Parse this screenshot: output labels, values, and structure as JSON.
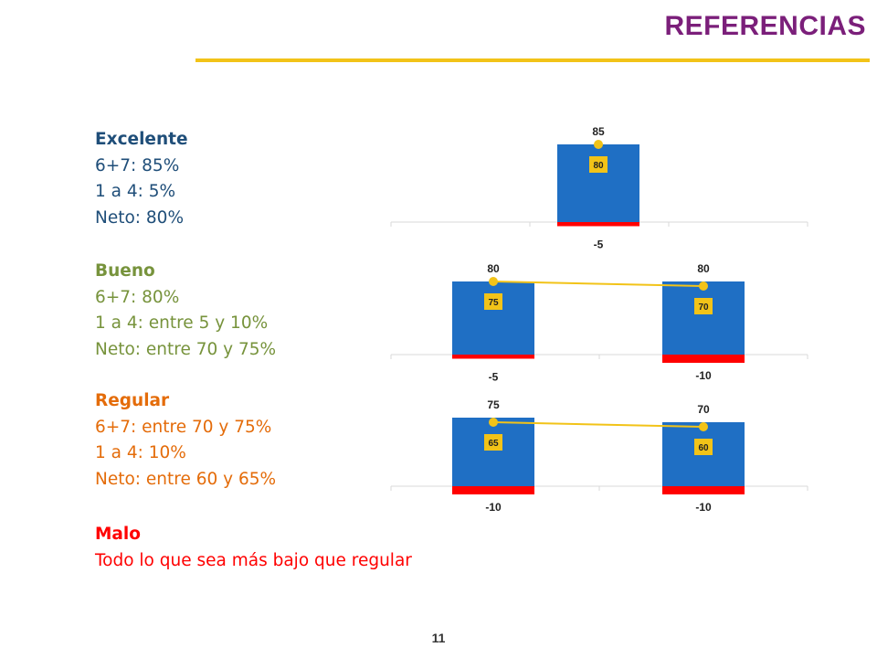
{
  "header": {
    "title": "REFERENCIAS",
    "rule_color": "#f2c318",
    "title_color": "#7b1f7a"
  },
  "legend": [
    {
      "key": "excelente",
      "color": "#1f4e79",
      "heading": "Excelente",
      "lines": [
        "6+7: 85%",
        "1 a 4: 5%",
        "Neto: 80%"
      ]
    },
    {
      "key": "bueno",
      "color": "#77933c",
      "heading": "Bueno",
      "lines": [
        "6+7: 80%",
        "1 a 4: entre 5 y 10%",
        "Neto: entre 70 y 75%"
      ]
    },
    {
      "key": "regular",
      "color": "#e46c0a",
      "heading": "Regular",
      "lines": [
        "6+7: entre 70 y 75%",
        "1 a 4: 10%",
        "Neto: entre 60 y 65%"
      ]
    },
    {
      "key": "malo",
      "color": "#ff0000",
      "heading": "Malo",
      "lines": [
        "Todo lo que sea más bajo que regular"
      ]
    }
  ],
  "colors": {
    "positive": "#1f6fc4",
    "negative": "#ff0000",
    "net_line": "#f2c318",
    "axis": "#d9d9d9"
  },
  "chart_data": [
    {
      "type": "bar",
      "name": "excelente",
      "categories": [
        "",
        "",
        ""
      ],
      "series": [
        {
          "values": [
            null,
            85,
            null
          ]
        },
        {
          "values": [
            null,
            -5,
            null
          ]
        },
        {
          "values": [
            null,
            80,
            null
          ]
        }
      ],
      "ylim": [
        -10,
        90
      ],
      "grid": false
    },
    {
      "type": "bar",
      "name": "bueno",
      "categories": [
        "",
        ""
      ],
      "series": [
        {
          "values": [
            80,
            80
          ]
        },
        {
          "values": [
            -5,
            -10
          ]
        },
        {
          "values": [
            75,
            70
          ]
        }
      ],
      "ylim": [
        -10,
        90
      ],
      "grid": false
    },
    {
      "type": "bar",
      "name": "regular",
      "categories": [
        "",
        ""
      ],
      "series": [
        {
          "values": [
            75,
            70
          ]
        },
        {
          "values": [
            -10,
            -10
          ]
        },
        {
          "values": [
            65,
            60
          ]
        }
      ],
      "ylim": [
        -10,
        90
      ],
      "grid": false
    }
  ],
  "footer": {
    "page_number": "11"
  }
}
